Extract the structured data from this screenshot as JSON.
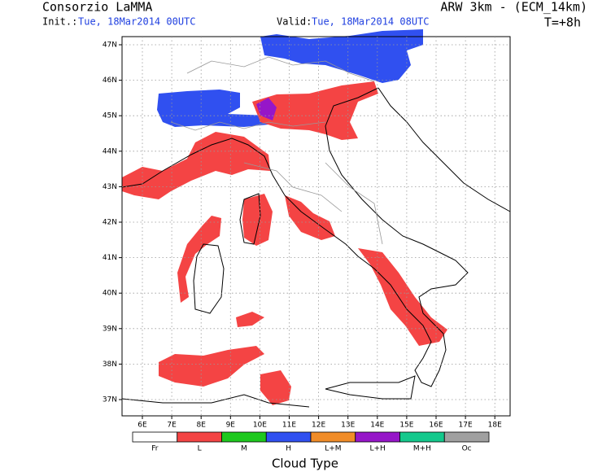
{
  "header": {
    "left_title": "Consorzio LaMMA",
    "right_title": "ARW 3km - (ECM_14km)",
    "init_label": "Init.:",
    "init_time": "Tue, 18Mar2014 00UTC",
    "valid_label": "Valid:",
    "valid_time": "Tue, 18Mar2014 08UTC",
    "lead": "T=+8h"
  },
  "map": {
    "lat_labels": [
      "47N",
      "46N",
      "45N",
      "44N",
      "43N",
      "42N",
      "41N",
      "40N",
      "39N",
      "38N",
      "37N"
    ],
    "lon_labels": [
      "6E",
      "7E",
      "8E",
      "9E",
      "10E",
      "11E",
      "12E",
      "13E",
      "14E",
      "15E",
      "16E",
      "17E",
      "18E"
    ]
  },
  "legend": {
    "title": "Cloud Type",
    "items": [
      {
        "label": "Fr",
        "color": "#ffffff"
      },
      {
        "label": "L",
        "color": "#f44444"
      },
      {
        "label": "M",
        "color": "#1ec81e"
      },
      {
        "label": "H",
        "color": "#3050f0"
      },
      {
        "label": "L+M",
        "color": "#f08c28"
      },
      {
        "label": "L+H",
        "color": "#9616c8"
      },
      {
        "label": "M+H",
        "color": "#14c88c"
      },
      {
        "label": "Oc",
        "color": "#a0a0a0"
      }
    ]
  }
}
